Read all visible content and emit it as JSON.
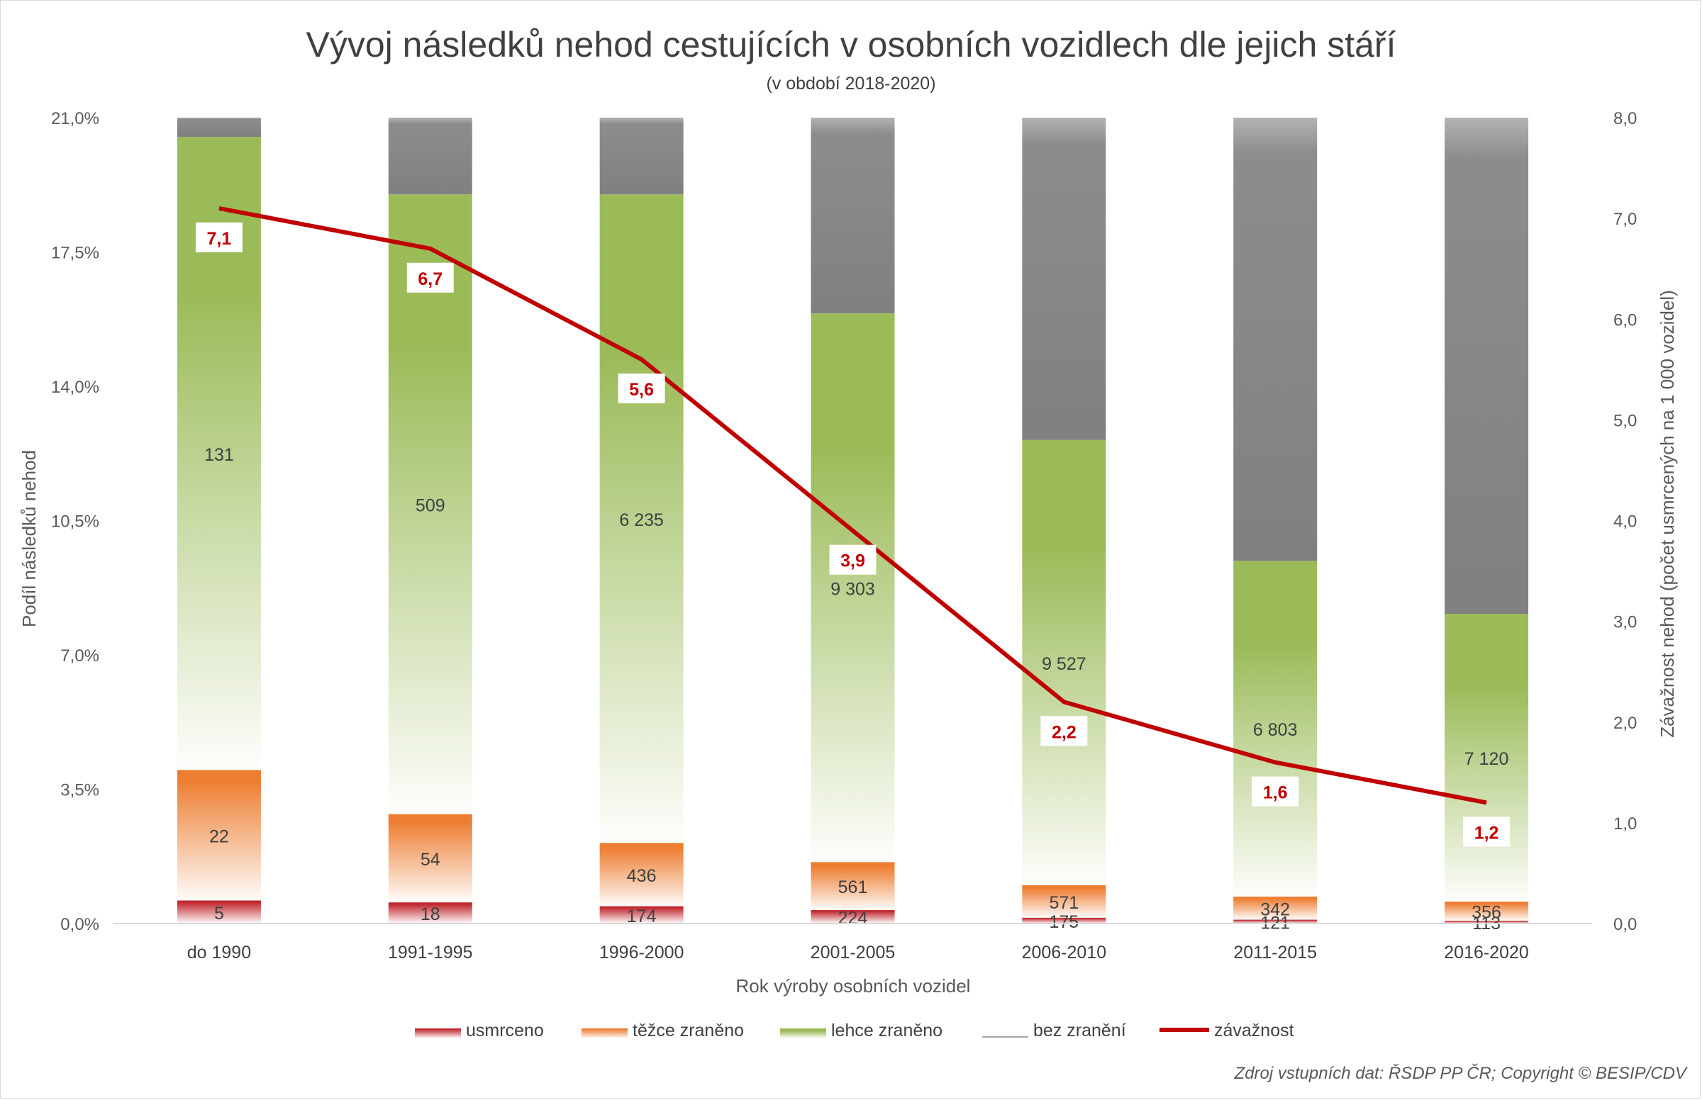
{
  "chart_data": {
    "type": "bar",
    "stacked": "100% (column height = share of outcomes)",
    "title": "Vývoj následků nehod cestujících v osobních vozidlech dle jejich stáří",
    "subtitle": "(v období 2018-2020)",
    "xlabel": "Rok výroby osobních vozidel",
    "ylabel": "Podíl následků nehod",
    "y2label": "Závažnost nehod (počet usmrcených na 1 000 vozidel)",
    "ylim": [
      0,
      21
    ],
    "y_ticks": [
      "0,0%",
      "3,5%",
      "7,0%",
      "10,5%",
      "14,0%",
      "17,5%",
      "21,0%"
    ],
    "y2lim": [
      0,
      8
    ],
    "y2_ticks": [
      "0,0",
      "1,0",
      "2,0",
      "3,0",
      "4,0",
      "5,0",
      "6,0",
      "7,0",
      "8,0"
    ],
    "categories": [
      "do 1990",
      "1991-1995",
      "1996-2000",
      "2001-2005",
      "2006-2010",
      "2011-2015",
      "2016-2020"
    ],
    "series": [
      {
        "name": "usmrceno",
        "color": "#c0282e",
        "percent": [
          0.6,
          0.55,
          0.45,
          0.35,
          0.15,
          0.1,
          0.07
        ],
        "labels": [
          "5",
          "18",
          "174",
          "224",
          "175",
          "121",
          "113"
        ]
      },
      {
        "name": "těžce zraněno",
        "color": "#ed7d31",
        "percent": [
          3.4,
          2.3,
          1.65,
          1.25,
          0.85,
          0.6,
          0.5
        ],
        "labels": [
          "22",
          "54",
          "436",
          "561",
          "571",
          "342",
          "356"
        ]
      },
      {
        "name": "lehce zraněno",
        "color": "#9bbb59",
        "percent": [
          16.5,
          16.15,
          16.9,
          14.3,
          11.6,
          8.75,
          7.5
        ],
        "labels": [
          "131",
          "509",
          "6 235",
          "9 303",
          "9 527",
          "6 803",
          "7 120"
        ]
      },
      {
        "name": "bez zranění",
        "color": "#808080",
        "percent": [
          0.5,
          2.0,
          2.0,
          5.1,
          8.4,
          11.55,
          12.93
        ],
        "labels": []
      }
    ],
    "line": {
      "name": "závažnost",
      "axis": "secondary",
      "color": "#c00000",
      "values": [
        7.1,
        6.7,
        5.6,
        3.9,
        2.2,
        1.6,
        1.2
      ],
      "labels": [
        "7,1",
        "6,7",
        "5,6",
        "3,9",
        "2,2",
        "1,6",
        "1,2"
      ]
    },
    "legend_position": "bottom",
    "grid": false
  },
  "legend": [
    {
      "label": "usmrceno",
      "color": "#c0282e"
    },
    {
      "label": "těžce zraněno",
      "color": "#ed7d31"
    },
    {
      "label": "lehce zraněno",
      "color": "#9bbb59"
    },
    {
      "label": "bez zranění",
      "color": "#808080"
    },
    {
      "label": "závažnost",
      "color": "#c00000"
    }
  ],
  "source_note": "Zdroj vstupních dat: ŘSDP PP ČR; Copyright © BESIP/CDV"
}
